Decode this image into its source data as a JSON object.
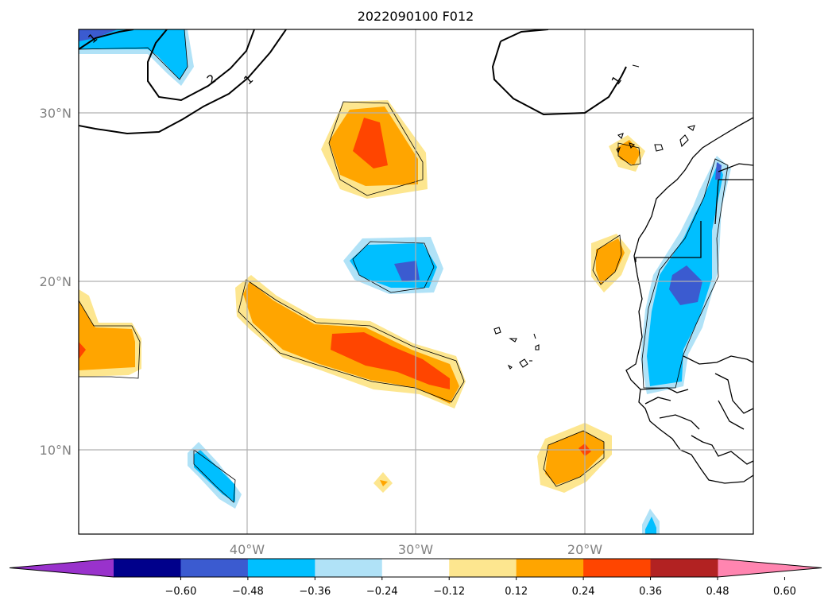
{
  "chart_data": {
    "type": "heatmap",
    "title": "2022090100 F012",
    "map": {
      "lon_range": [
        -50,
        -10
      ],
      "lat_range": [
        5,
        35
      ],
      "grid": true,
      "lat_ticks": [
        {
          "value": 10,
          "label": "10°N"
        },
        {
          "value": 20,
          "label": "20°N"
        },
        {
          "value": 30,
          "label": "30°N"
        }
      ],
      "lon_ticks": [
        {
          "value": -40,
          "label": "40°W"
        },
        {
          "value": -30,
          "label": "30°W"
        },
        {
          "value": -20,
          "label": "20°W"
        }
      ]
    },
    "colorbar": {
      "orientation": "horizontal",
      "extend": "both",
      "levels": [
        -0.6,
        -0.48,
        -0.36,
        -0.24,
        -0.12,
        0.12,
        0.24,
        0.36,
        0.48,
        0.6
      ],
      "tick_labels": [
        "−0.60",
        "−0.48",
        "−0.36",
        "−0.24",
        "−0.12",
        "0.12",
        "0.24",
        "0.36",
        "0.48",
        "0.60"
      ],
      "colors": [
        "#9932cc",
        "#00008b",
        "#3b5bd0",
        "#00bfff",
        "#b0e2f7",
        "#ffffff",
        "#fde68f",
        "#ffa500",
        "#ff4500",
        "#b22222",
        "#ff85b0"
      ]
    },
    "contour_labels": [
      "1",
      "2",
      "1",
      "1"
    ],
    "features": [
      {
        "name": "positive anomaly",
        "center": [
          -31.5,
          27.5
        ],
        "max_level": 0.36
      },
      {
        "name": "negative anomaly",
        "center": [
          -30,
          20.5
        ],
        "max_level": -0.48
      },
      {
        "name": "positive band",
        "center": [
          -33,
          16.5
        ],
        "max_level": 0.36
      },
      {
        "name": "positive anomaly",
        "center": [
          -48,
          16
        ],
        "max_level": 0.36
      },
      {
        "name": "negative anomaly",
        "center": [
          -42,
          9
        ],
        "max_level": -0.36
      },
      {
        "name": "positive anomaly",
        "center": [
          -20.5,
          9.5
        ],
        "max_level": 0.36
      },
      {
        "name": "negative band",
        "center": [
          -14,
          18
        ],
        "max_level": -0.48
      },
      {
        "name": "positive anomaly",
        "center": [
          -19,
          21.5
        ],
        "max_level": 0.36
      },
      {
        "name": "positive anomaly",
        "center": [
          -18,
          27.5
        ],
        "max_level": 0.24
      },
      {
        "name": "negative anomaly",
        "center": [
          -46,
          34
        ],
        "max_level": -0.48
      }
    ]
  }
}
